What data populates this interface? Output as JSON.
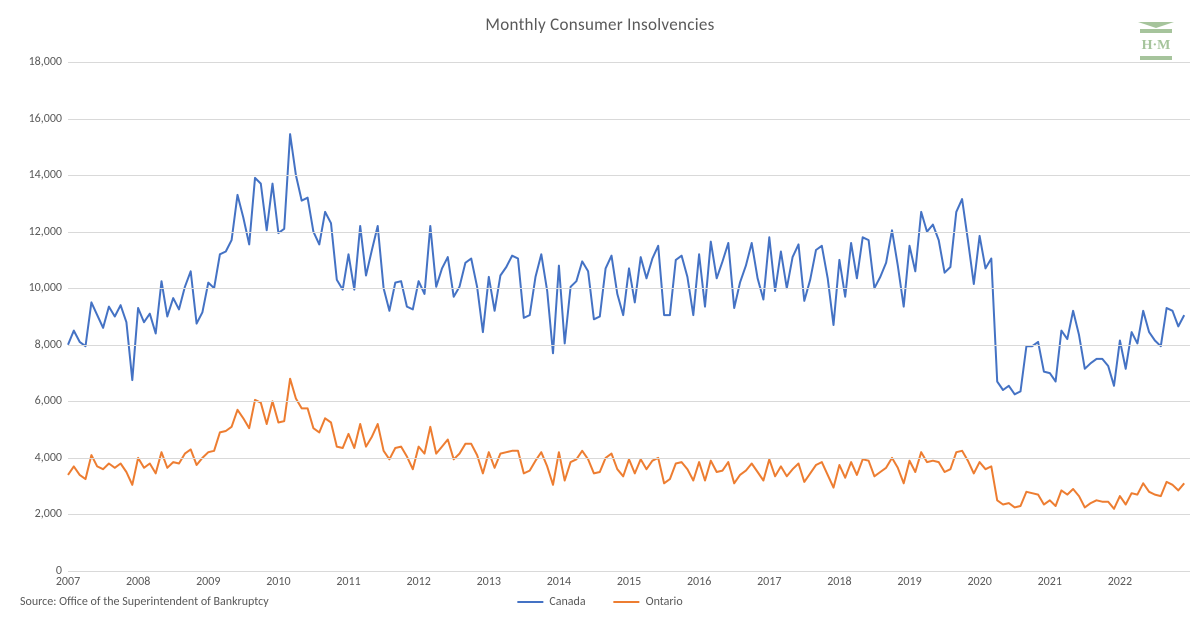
{
  "chart": {
    "type": "line",
    "title": "Monthly Consumer Insolvencies",
    "title_fontsize": 17,
    "title_color": "#595959",
    "background_color": "#ffffff",
    "grid_color": "#d9d9d9",
    "label_color": "#595959",
    "label_fontsize": 12,
    "ylim": [
      0,
      18000
    ],
    "ytick_step": 2000,
    "yticks": [
      0,
      2000,
      4000,
      6000,
      8000,
      10000,
      12000,
      14000,
      16000,
      18000
    ],
    "ytick_labels": [
      "0",
      "2,000",
      "4,000",
      "6,000",
      "8,000",
      "10,000",
      "12,000",
      "14,000",
      "16,000",
      "18,000"
    ],
    "xlim_years": [
      2007,
      2023
    ],
    "xticks_years": [
      2007,
      2008,
      2009,
      2010,
      2011,
      2012,
      2013,
      2014,
      2015,
      2016,
      2017,
      2018,
      2019,
      2020,
      2021,
      2022
    ],
    "line_width": 2,
    "series": [
      {
        "name": "Canada",
        "color": "#4472c4",
        "values": [
          8000,
          8500,
          8100,
          7950,
          9500,
          9050,
          8600,
          9350,
          9000,
          9400,
          8800,
          6750,
          9300,
          8800,
          9100,
          8400,
          10250,
          9000,
          9650,
          9250,
          10050,
          10600,
          8750,
          9150,
          10200,
          10000,
          11200,
          11300,
          11700,
          13300,
          12500,
          11550,
          13900,
          13700,
          12050,
          13700,
          11950,
          12100,
          15450,
          14000,
          13100,
          13200,
          12000,
          11550,
          12700,
          12300,
          10300,
          9950,
          11200,
          9950,
          12200,
          10450,
          11350,
          12200,
          10000,
          9200,
          10200,
          10250,
          9350,
          9250,
          10250,
          9800,
          12200,
          10050,
          10700,
          11100,
          9700,
          10050,
          10900,
          11050,
          10050,
          8450,
          10400,
          9200,
          10450,
          10750,
          11150,
          11050,
          8950,
          9050,
          10400,
          11200,
          9900,
          7700,
          10800,
          8050,
          10050,
          10250,
          10950,
          10600,
          8900,
          9000,
          10700,
          11150,
          9800,
          9050,
          10700,
          9500,
          11100,
          10350,
          11050,
          11500,
          9050,
          9050,
          11000,
          11150,
          10400,
          9050,
          11200,
          9350,
          11650,
          10350,
          10950,
          11600,
          9300,
          10200,
          10800,
          11600,
          10350,
          9600,
          11800,
          9900,
          11300,
          10000,
          11100,
          11550,
          9550,
          10300,
          11350,
          11500,
          10350,
          8700,
          11000,
          9700,
          11600,
          10350,
          11800,
          11700,
          10000,
          10400,
          10900,
          12050,
          10800,
          9350,
          11500,
          10600,
          12700,
          12000,
          12250,
          11700,
          10550,
          10750,
          12700,
          13150,
          11700,
          10150,
          11850,
          10700,
          11050,
          6700,
          6400,
          6550,
          6250,
          6350,
          7950,
          7950,
          8100,
          7050,
          7000,
          6700,
          8500,
          8200,
          9200,
          8350,
          7150,
          7350,
          7500,
          7500,
          7250,
          6550,
          8150,
          7150,
          8450,
          8050,
          9200,
          8450,
          8150,
          7950,
          9300,
          9200,
          8650,
          9050
        ]
      },
      {
        "name": "Ontario",
        "color": "#ed7d31",
        "values": [
          3400,
          3700,
          3400,
          3250,
          4100,
          3700,
          3600,
          3800,
          3650,
          3800,
          3500,
          3050,
          4000,
          3650,
          3800,
          3450,
          4200,
          3650,
          3850,
          3800,
          4150,
          4300,
          3750,
          4000,
          4200,
          4250,
          4900,
          4950,
          5100,
          5700,
          5400,
          5050,
          6050,
          5950,
          5200,
          6000,
          5250,
          5300,
          6800,
          6100,
          5750,
          5750,
          5050,
          4900,
          5400,
          5250,
          4400,
          4350,
          4850,
          4350,
          5200,
          4400,
          4750,
          5200,
          4250,
          3950,
          4350,
          4400,
          4050,
          3600,
          4400,
          4150,
          5100,
          4150,
          4400,
          4650,
          3950,
          4150,
          4500,
          4500,
          4100,
          3450,
          4200,
          3650,
          4150,
          4200,
          4250,
          4250,
          3450,
          3550,
          3900,
          4200,
          3700,
          3050,
          4200,
          3200,
          3850,
          3950,
          4250,
          3950,
          3450,
          3500,
          4000,
          4150,
          3600,
          3350,
          3950,
          3450,
          3950,
          3600,
          3900,
          4000,
          3100,
          3250,
          3800,
          3850,
          3600,
          3200,
          3850,
          3200,
          3900,
          3500,
          3550,
          3850,
          3100,
          3400,
          3550,
          3800,
          3500,
          3200,
          3950,
          3350,
          3700,
          3350,
          3600,
          3800,
          3150,
          3450,
          3750,
          3850,
          3400,
          2950,
          3750,
          3300,
          3850,
          3400,
          3950,
          3900,
          3350,
          3500,
          3650,
          4000,
          3650,
          3100,
          3900,
          3500,
          4200,
          3850,
          3900,
          3850,
          3500,
          3600,
          4200,
          4250,
          3900,
          3450,
          3850,
          3600,
          3700,
          2500,
          2350,
          2400,
          2250,
          2300,
          2800,
          2750,
          2700,
          2350,
          2500,
          2300,
          2850,
          2700,
          2900,
          2650,
          2250,
          2400,
          2500,
          2450,
          2450,
          2200,
          2650,
          2350,
          2750,
          2700,
          3100,
          2800,
          2700,
          2650,
          3150,
          3050,
          2850,
          3100
        ]
      }
    ]
  },
  "source": "Source: Office of the Superintendent of Bankruptcy",
  "legend": {
    "items": [
      "Canada",
      "Ontario"
    ]
  },
  "logo": {
    "label": "H·M",
    "color": "#8fbc8f"
  }
}
